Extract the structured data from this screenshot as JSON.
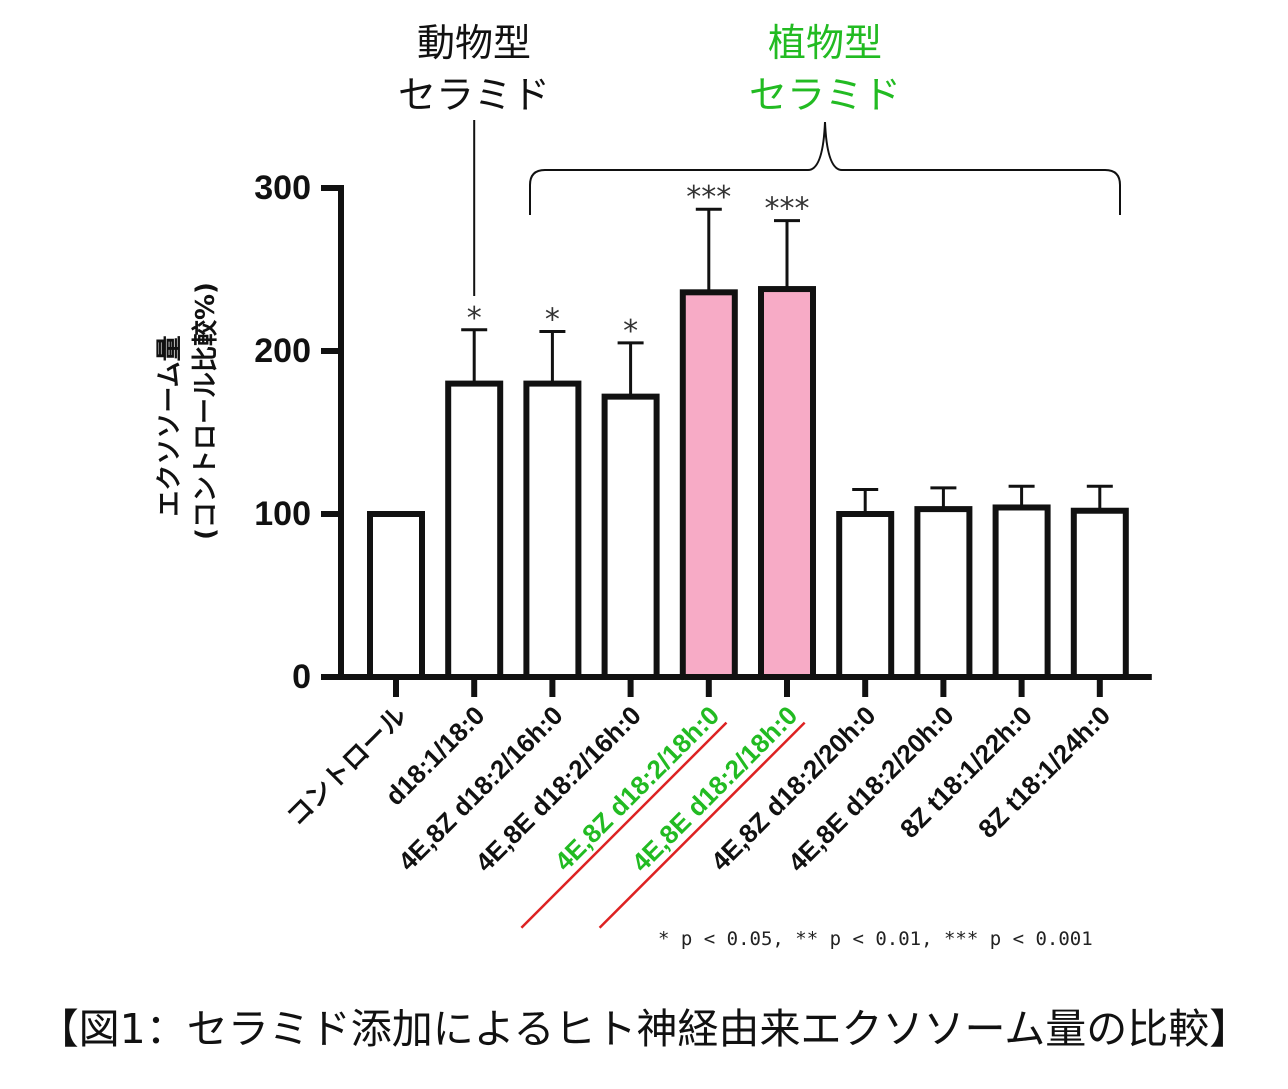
{
  "chart_data": {
    "type": "bar",
    "ylabel_line1": "エクソソーム量",
    "ylabel_line2": "(コントロール比較%)",
    "ylim": [
      0,
      300
    ],
    "yticks": [
      0,
      100,
      200,
      300
    ],
    "categories": [
      "コントロール",
      "d18:1/18:0",
      "4E,8Z d18:2/16h:0",
      "4E,8E d18:2/16h:0",
      "4E,8Z d18:2/18h:0",
      "4E,8E d18:2/18h:0",
      "4E,8Z d18:2/20h:0",
      "4E,8E d18:2/20h:0",
      "8Z t18:1/22h:0",
      "8Z t18:1/24h:0"
    ],
    "values": [
      100,
      180,
      180,
      172,
      236,
      238,
      100,
      103,
      104,
      102
    ],
    "errors": [
      0,
      33,
      32,
      33,
      51,
      42,
      15,
      13,
      13,
      15
    ],
    "significance": [
      "",
      "*",
      "*",
      "*",
      "***",
      "***",
      "",
      "",
      "",
      ""
    ],
    "highlighted": [
      false,
      false,
      false,
      false,
      true,
      true,
      false,
      false,
      false,
      false
    ],
    "bar_fill": "#ffffff",
    "highlight_fill": "#f7abc6",
    "highlight_label_color": "#22bb22",
    "underline_color": "#dd2222",
    "annotations": {
      "animal_line1": "動物型",
      "animal_line2": "セラミド",
      "plant_line1": "植物型",
      "plant_line2": "セラミド",
      "animal_color": "#111111",
      "plant_color": "#22bb22"
    },
    "footnote": "* p < 0.05, ** p < 0.01, *** p < 0.001"
  },
  "caption": "【図1：セラミド添加によるヒト神経由来エクソソーム量の比較】"
}
